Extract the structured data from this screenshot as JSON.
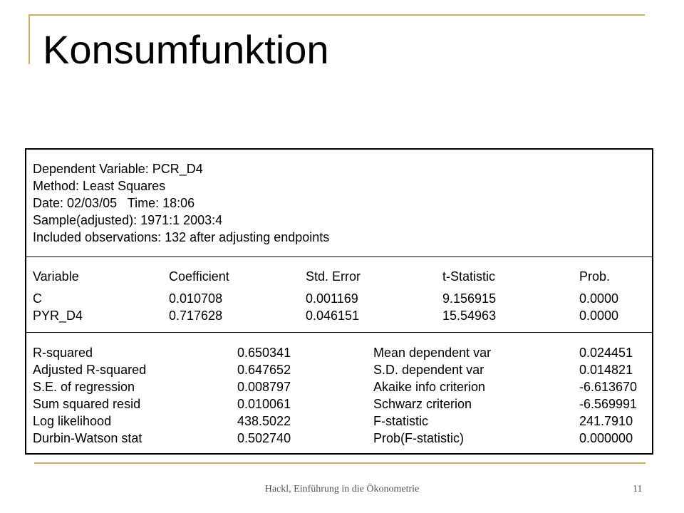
{
  "title": "Konsumfunktion",
  "header_lines": [
    "Dependent Variable: PCR_D4",
    "Method: Least Squares",
    "Date: 02/03/05   Time: 18:06",
    "Sample(adjusted): 1971:1 2003:4",
    "Included observations: 132 after adjusting endpoints"
  ],
  "coef_table": {
    "columns": [
      "Variable",
      "Coefficient",
      "Std. Error",
      "t-Statistic",
      "Prob."
    ],
    "rows": [
      [
        "C",
        "0.010708",
        "0.001169",
        "9.156915",
        "0.0000"
      ],
      [
        "PYR_D4",
        "0.717628",
        "0.046151",
        "15.54963",
        "0.0000"
      ]
    ]
  },
  "stats": [
    [
      "R-squared",
      "0.650341",
      "Mean dependent var",
      "0.024451"
    ],
    [
      "Adjusted R-squared",
      "0.647652",
      "S.D. dependent var",
      "0.014821"
    ],
    [
      "S.E. of regression",
      "0.008797",
      "Akaike info criterion",
      "-6.613670"
    ],
    [
      "Sum squared resid",
      "0.010061",
      "Schwarz criterion",
      "-6.569991"
    ],
    [
      "Log likelihood",
      "438.5022",
      "F-statistic",
      "241.7910"
    ],
    [
      "Durbin-Watson stat",
      "0.502740",
      "Prob(F-statistic)",
      "0.000000"
    ]
  ],
  "footer": {
    "text": "Hackl, Einführung in die Ökonometrie",
    "page": "11"
  }
}
